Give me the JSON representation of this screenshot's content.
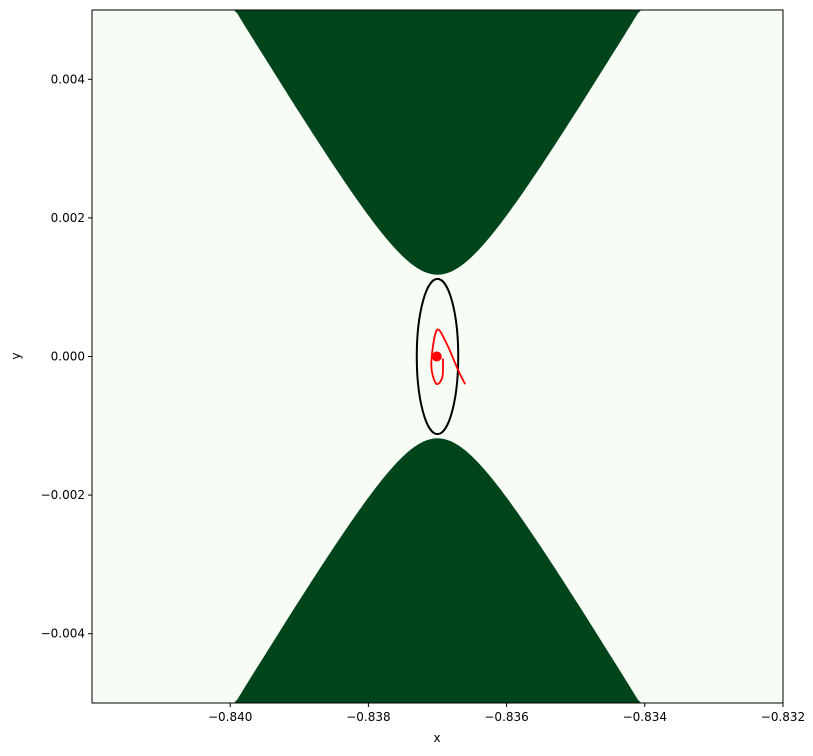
{
  "chart_data": {
    "type": "contour-region-plot",
    "title": "",
    "xlabel": "x",
    "ylabel": "y",
    "xlim": [
      -0.842,
      -0.832
    ],
    "ylim": [
      -0.005,
      0.005
    ],
    "xticks": [
      -0.84,
      -0.838,
      -0.836,
      -0.834,
      -0.832
    ],
    "xtick_labels": [
      "−0.840",
      "−0.838",
      "−0.836",
      "−0.834",
      "−0.832"
    ],
    "yticks": [
      -0.004,
      -0.002,
      0.0,
      0.002,
      0.004
    ],
    "ytick_labels": [
      "−0.004",
      "−0.002",
      "0.000",
      "0.002",
      "0.004"
    ],
    "grid": false,
    "colors": {
      "background_region": "#f7fcf5",
      "filled_region": "#00441b",
      "ellipse": "#000000",
      "trajectory": "#ff0000"
    },
    "filled_regions": {
      "shape": "hyperbola |y| above curve",
      "center_x": -0.837,
      "vertex_abs_y": 0.00118,
      "x_at_ylim": [
        -0.83993,
        -0.83407
      ]
    },
    "ellipse": {
      "center": [
        -0.837,
        0.0
      ],
      "semi_axis_x": 0.0003,
      "semi_axis_y": 0.00112
    },
    "point": {
      "x": -0.83701,
      "y": 0.0
    },
    "trajectory": {
      "x": [
        -0.83692,
        -0.83693,
        -0.83702,
        -0.83709,
        -0.83701,
        -0.83687,
        -0.8367,
        -0.8366
      ],
      "y": [
        -3e-05,
        -0.0003,
        -0.00039,
        -0.00011,
        0.00038,
        0.00019,
        -0.0002,
        -0.0004
      ]
    }
  }
}
